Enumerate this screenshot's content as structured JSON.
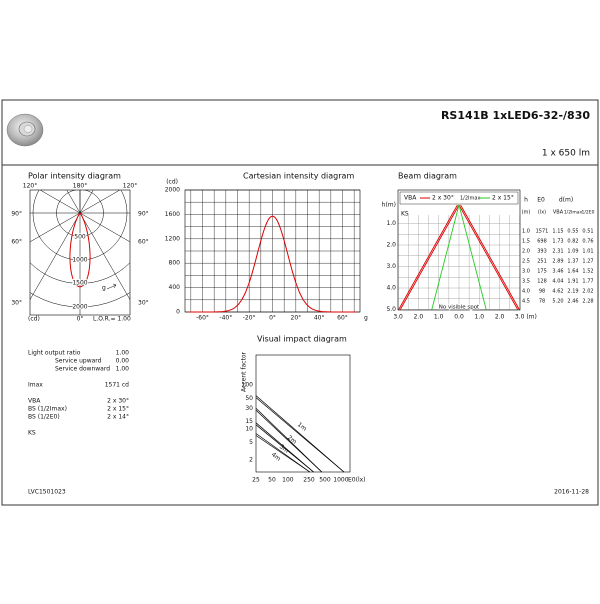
{
  "header": {
    "title": "RS141B 1xLED6-32-/830",
    "flux": "1 x 650 lm"
  },
  "polar": {
    "title": "Polar intensity diagram",
    "angles_top": [
      "120°",
      "180°",
      "120°"
    ],
    "angles_side": [
      "90°",
      "90°",
      "60°",
      "60°",
      "30°",
      "30°"
    ],
    "rings": [
      "500",
      "1000",
      "1500",
      "2000"
    ],
    "unit": "(cd)",
    "zero": "0°",
    "lor": "L.O.R.= 1.00",
    "g": "g"
  },
  "cartesian": {
    "title": "Cartesian intensity diagram",
    "unit": "(cd)",
    "yticks": [
      "2000",
      "1600",
      "1200",
      "800",
      "400",
      "0"
    ],
    "xticks": [
      "-60°",
      "-40°",
      "-20°",
      "0°",
      "20°",
      "40°",
      "60°"
    ],
    "g": "g"
  },
  "beam": {
    "title": "Beam diagram",
    "axis": "h(m)",
    "legend": [
      "VBA",
      "2 x 30°",
      "1/2Imax",
      "2 x 15°"
    ],
    "ks": "KS",
    "yticks": [
      "1.0",
      "2.0",
      "3.0",
      "4.0",
      "5.0"
    ],
    "xticks": [
      "3.0",
      "2.0",
      "1.0",
      "0.0",
      "1.0",
      "2.0",
      "3.0 (m)"
    ],
    "no_spot": "No visible spot",
    "table": {
      "header": [
        "h",
        "E0",
        "d(m)"
      ],
      "units": [
        "(m)",
        "(lx)",
        "VBA",
        "1/2Imax",
        "1/2E0"
      ],
      "rows": [
        [
          "1.0",
          "1571",
          "1.15",
          "0.55",
          "0.51"
        ],
        [
          "1.5",
          "698",
          "1.73",
          "0.82",
          "0.76"
        ],
        [
          "2.0",
          "393",
          "2.31",
          "1.09",
          "1.01"
        ],
        [
          "2.5",
          "251",
          "2.89",
          "1.37",
          "1.27"
        ],
        [
          "3.0",
          "175",
          "3.46",
          "1.64",
          "1.52"
        ],
        [
          "3.5",
          "128",
          "4.04",
          "1.91",
          "1.77"
        ],
        [
          "4.0",
          "98",
          "4.62",
          "2.19",
          "2.02"
        ],
        [
          "4.5",
          "78",
          "5.20",
          "2.46",
          "2.28"
        ]
      ]
    }
  },
  "impact": {
    "title": "Visual impact diagram",
    "axis": "Accent factor",
    "yticks": [
      "100",
      "50",
      "30",
      "15",
      "10",
      "5",
      "2"
    ],
    "xticks": [
      "25",
      "50",
      "100",
      "250",
      "500",
      "1000",
      "E0(lx)"
    ],
    "lines": [
      "1m",
      "2m",
      "3m",
      "4m"
    ]
  },
  "summary": {
    "rows": [
      [
        "Light output ratio",
        "1.00"
      ],
      [
        "Service upward",
        "0.00"
      ],
      [
        "Service downward",
        "1.00"
      ],
      [
        "Imax",
        "1571 cd"
      ],
      [
        "VBA",
        "2 x 30°"
      ],
      [
        "BS (1/2Imax)",
        "2 x 15°"
      ],
      [
        "BS (1/2E0)",
        "2 x 14°"
      ]
    ],
    "ks": "KS"
  },
  "footer": {
    "code": "LVC1501023",
    "date": "2016-11-28"
  }
}
